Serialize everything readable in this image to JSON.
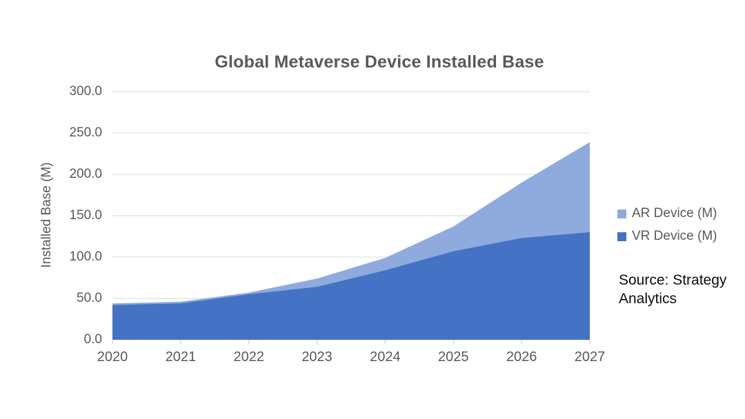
{
  "title": "Global Metaverse Device Installed Base",
  "y_axis": {
    "label": "Installed Base (M)",
    "tick_labels": [
      "0.0",
      "50.0",
      "100.0",
      "150.0",
      "200.0",
      "250.0",
      "300.0"
    ]
  },
  "x_axis": {
    "tick_labels": [
      "2020",
      "2021",
      "2022",
      "2023",
      "2024",
      "2025",
      "2026",
      "2027"
    ]
  },
  "legend": {
    "items": [
      {
        "label": "AR Device (M)",
        "color": "#8FAADC"
      },
      {
        "label": "VR Device (M)",
        "color": "#4472C4"
      }
    ]
  },
  "source_note": "Source: Strategy Analytics",
  "colors": {
    "vr_area": "#4472C4",
    "ar_area": "#8FAADC",
    "gridline": "#D9D9D9",
    "tick_mark": "#C6C6C6",
    "axis_text": "#595959",
    "title_text": "#595959"
  },
  "chart_data": {
    "type": "area",
    "stacked": true,
    "title": "Global Metaverse Device Installed Base",
    "xlabel": "",
    "ylabel": "Installed Base (M)",
    "ylim": [
      0,
      300
    ],
    "ytick_step": 50,
    "grid": true,
    "legend_position": "right",
    "categories": [
      2020,
      2021,
      2022,
      2023,
      2024,
      2025,
      2026,
      2027
    ],
    "series": [
      {
        "name": "VR Device (M)",
        "color": "#4472C4",
        "values": [
          42,
          44,
          55,
          64,
          84,
          107,
          123,
          130
        ]
      },
      {
        "name": "AR Device (M)",
        "color": "#8FAADC",
        "values": [
          2,
          2,
          2,
          10,
          15,
          30,
          67,
          109
        ]
      }
    ],
    "stacked_totals": [
      44,
      46,
      57,
      74,
      99,
      137,
      190,
      239
    ]
  }
}
